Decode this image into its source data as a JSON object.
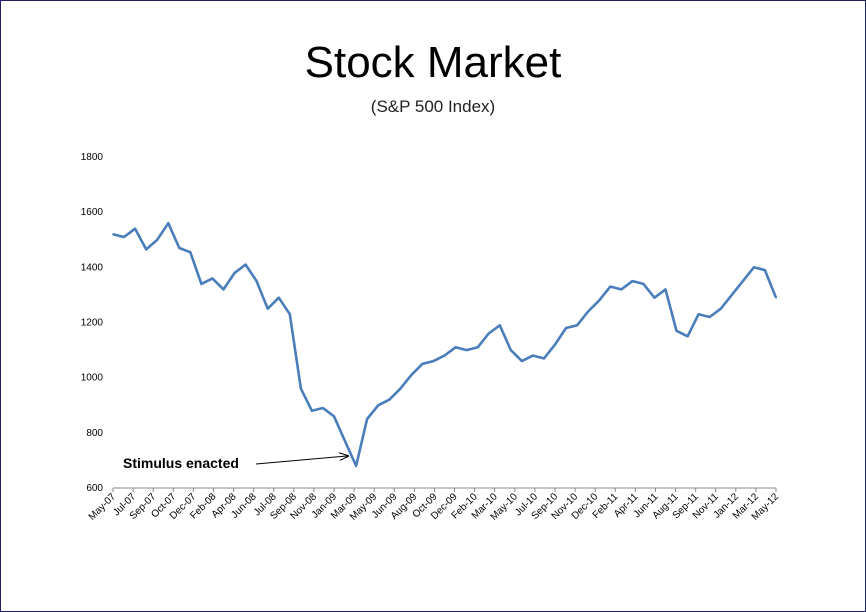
{
  "chart_data": {
    "type": "line",
    "title": "Stock Market",
    "subtitle": "(S&P 500 Index)",
    "xlabel": "",
    "ylabel": "",
    "ylim": [
      600,
      1800
    ],
    "yticks": [
      600,
      800,
      1000,
      1200,
      1400,
      1600,
      1800
    ],
    "grid": false,
    "legend": "none",
    "line_color": "#4a7ebb",
    "xtick_labels": [
      "May-07",
      "Jul-07",
      "Sep-07",
      "Oct-07",
      "Dec-07",
      "Feb-08",
      "Apr-08",
      "Jun-08",
      "Jul-08",
      "Sep-08",
      "Nov-08",
      "Jan-09",
      "Mar-09",
      "May-09",
      "Jun-09",
      "Aug-09",
      "Oct-09",
      "Dec-09",
      "Feb-10",
      "Mar-10",
      "May-10",
      "Jul-10",
      "Sep-10",
      "Nov-10",
      "Dec-10",
      "Feb-11",
      "Apr-11",
      "Jun-11",
      "Aug-11",
      "Sep-11",
      "Nov-11",
      "Jan-12",
      "Mar-12",
      "May-12"
    ],
    "x": [
      "May-07",
      "Jun-07",
      "Jul-07",
      "Aug-07",
      "Sep-07",
      "Oct-07",
      "Nov-07",
      "Dec-07",
      "Jan-08",
      "Feb-08",
      "Mar-08",
      "Apr-08",
      "May-08",
      "Jun-08",
      "Jul-08",
      "Aug-08",
      "Sep-08",
      "Oct-08",
      "Nov-08",
      "Dec-08",
      "Jan-09",
      "Feb-09",
      "Mar-09",
      "Apr-09",
      "May-09",
      "Jun-09",
      "Jul-09",
      "Aug-09",
      "Sep-09",
      "Oct-09",
      "Nov-09",
      "Dec-09",
      "Jan-10",
      "Feb-10",
      "Mar-10",
      "Apr-10",
      "May-10",
      "Jun-10",
      "Jul-10",
      "Aug-10",
      "Sep-10",
      "Oct-10",
      "Nov-10",
      "Dec-10",
      "Jan-11",
      "Feb-11",
      "Mar-11",
      "Apr-11",
      "May-11",
      "Jun-11",
      "Jul-11",
      "Aug-11",
      "Sep-11",
      "Oct-11",
      "Nov-11",
      "Dec-11",
      "Jan-12",
      "Feb-12",
      "Mar-12",
      "Apr-12",
      "May-12"
    ],
    "values": [
      1520,
      1510,
      1540,
      1465,
      1500,
      1560,
      1470,
      1455,
      1340,
      1360,
      1320,
      1380,
      1410,
      1350,
      1250,
      1290,
      1230,
      960,
      880,
      890,
      860,
      770,
      680,
      850,
      900,
      920,
      960,
      1010,
      1050,
      1060,
      1080,
      1110,
      1100,
      1110,
      1160,
      1190,
      1100,
      1060,
      1080,
      1070,
      1120,
      1180,
      1190,
      1240,
      1280,
      1330,
      1320,
      1350,
      1340,
      1290,
      1320,
      1170,
      1150,
      1230,
      1220,
      1250,
      1300,
      1350,
      1400,
      1390,
      1290
    ],
    "annotation": {
      "text": "Stimulus enacted",
      "x": "Mar-09",
      "y": 680
    }
  }
}
